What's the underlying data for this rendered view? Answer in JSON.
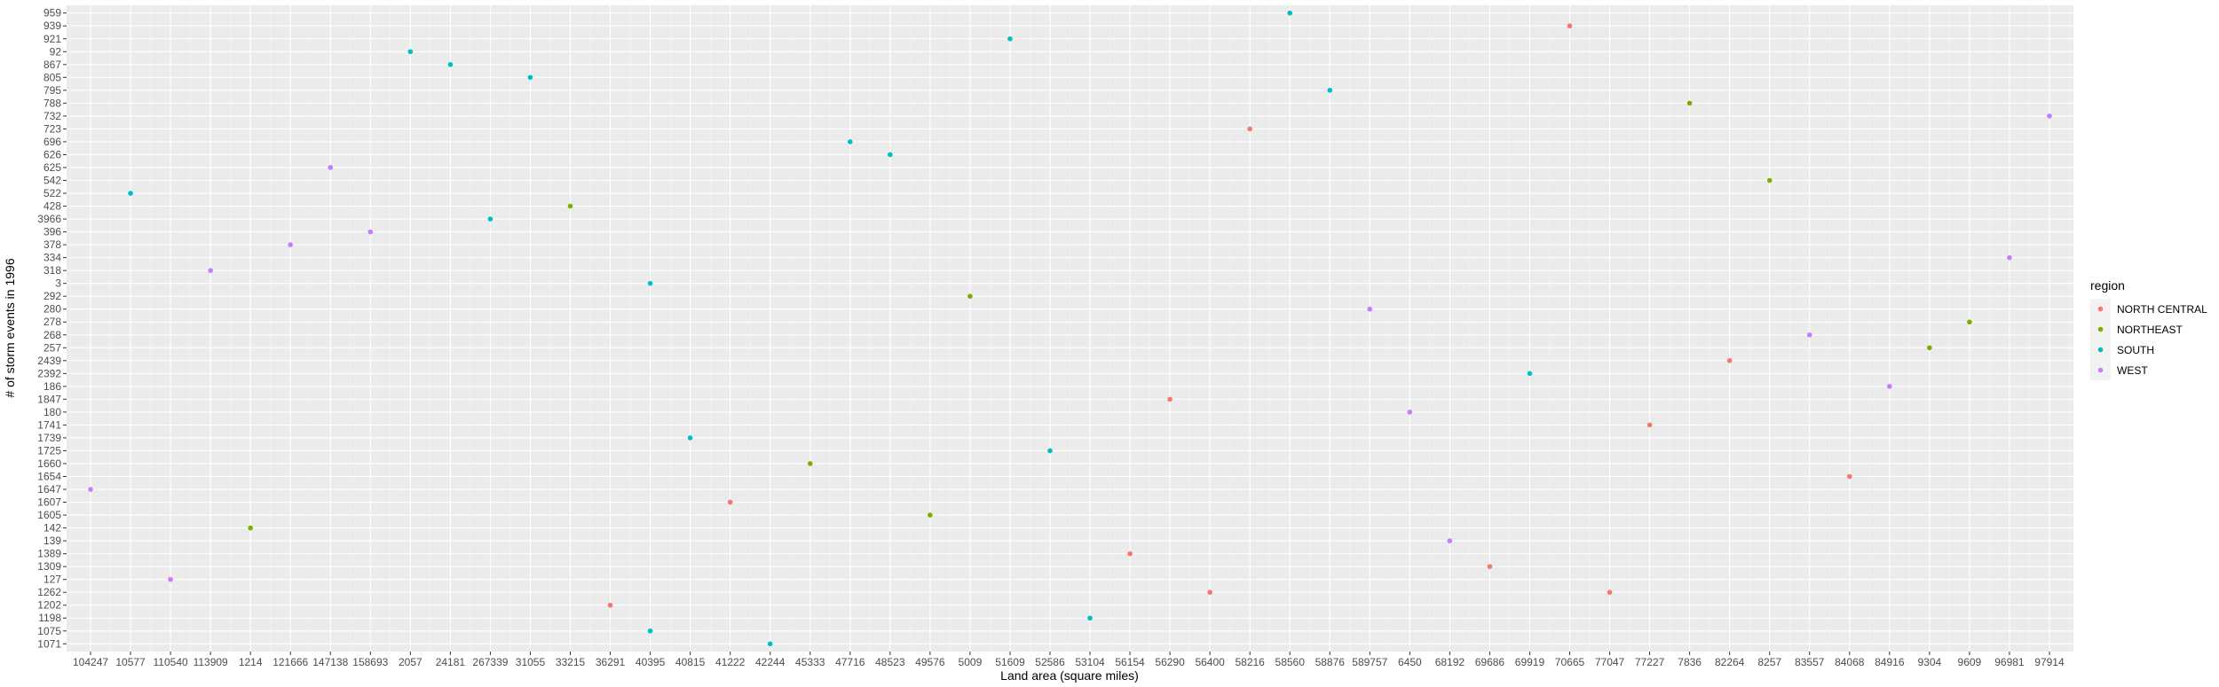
{
  "chart_data": {
    "type": "scatter",
    "xlabel": "Land area (square miles)",
    "ylabel": "# of storm events in 1996",
    "x_categories": [
      "104247",
      "10577",
      "110540",
      "113909",
      "1214",
      "121666",
      "147138",
      "158693",
      "2057",
      "24181",
      "267339",
      "31055",
      "33215",
      "36291",
      "40395",
      "40815",
      "41222",
      "42244",
      "45333",
      "47716",
      "48523",
      "49576",
      "5009",
      "51609",
      "52586",
      "53104",
      "56154",
      "56290",
      "56400",
      "58216",
      "58560",
      "58876",
      "589757",
      "6450",
      "68192",
      "69686",
      "69919",
      "70665",
      "77047",
      "77227",
      "7836",
      "82264",
      "8257",
      "83557",
      "84068",
      "84916",
      "9304",
      "9609",
      "96981",
      "97914"
    ],
    "y_categories": [
      "1071",
      "1075",
      "1198",
      "1202",
      "1262",
      "127",
      "1309",
      "1389",
      "139",
      "142",
      "1605",
      "1607",
      "1647",
      "1654",
      "1660",
      "1725",
      "1739",
      "1741",
      "180",
      "1847",
      "186",
      "2392",
      "2439",
      "257",
      "268",
      "278",
      "280",
      "292",
      "3",
      "318",
      "334",
      "378",
      "396",
      "3966",
      "428",
      "522",
      "542",
      "625",
      "626",
      "696",
      "723",
      "732",
      "788",
      "795",
      "805",
      "867",
      "92",
      "921",
      "939",
      "959"
    ],
    "series": [
      {
        "name": "NORTH CENTRAL",
        "color": "#F8766D",
        "points": [
          {
            "x": "36291",
            "y": "1202"
          },
          {
            "x": "41222",
            "y": "1607"
          },
          {
            "x": "56154",
            "y": "1389"
          },
          {
            "x": "56290",
            "y": "1847"
          },
          {
            "x": "56400",
            "y": "1262"
          },
          {
            "x": "58216",
            "y": "723"
          },
          {
            "x": "69686",
            "y": "1309"
          },
          {
            "x": "70665",
            "y": "939"
          },
          {
            "x": "77047",
            "y": "1262"
          },
          {
            "x": "77227",
            "y": "1741"
          },
          {
            "x": "82264",
            "y": "2439"
          },
          {
            "x": "84068",
            "y": "1654"
          }
        ]
      },
      {
        "name": "NORTHEAST",
        "color": "#7CAE00",
        "points": [
          {
            "x": "1214",
            "y": "142"
          },
          {
            "x": "33215",
            "y": "428"
          },
          {
            "x": "45333",
            "y": "1660"
          },
          {
            "x": "49576",
            "y": "1605"
          },
          {
            "x": "5009",
            "y": "292"
          },
          {
            "x": "7836",
            "y": "788"
          },
          {
            "x": "8257",
            "y": "542"
          },
          {
            "x": "9304",
            "y": "257"
          },
          {
            "x": "9609",
            "y": "278"
          }
        ]
      },
      {
        "name": "SOUTH",
        "color": "#00BFC4",
        "points": [
          {
            "x": "10577",
            "y": "522"
          },
          {
            "x": "2057",
            "y": "92"
          },
          {
            "x": "24181",
            "y": "867"
          },
          {
            "x": "267339",
            "y": "3966"
          },
          {
            "x": "31055",
            "y": "805"
          },
          {
            "x": "40395",
            "y": "3"
          },
          {
            "x": "40395",
            "y": "1075"
          },
          {
            "x": "40815",
            "y": "1739"
          },
          {
            "x": "42244",
            "y": "1071"
          },
          {
            "x": "47716",
            "y": "696"
          },
          {
            "x": "48523",
            "y": "626"
          },
          {
            "x": "51609",
            "y": "921"
          },
          {
            "x": "52586",
            "y": "1725"
          },
          {
            "x": "53104",
            "y": "1198"
          },
          {
            "x": "58560",
            "y": "959"
          },
          {
            "x": "58876",
            "y": "795"
          },
          {
            "x": "69919",
            "y": "2392"
          }
        ]
      },
      {
        "name": "WEST",
        "color": "#C77CFF",
        "points": [
          {
            "x": "104247",
            "y": "1647"
          },
          {
            "x": "110540",
            "y": "127"
          },
          {
            "x": "113909",
            "y": "318"
          },
          {
            "x": "121666",
            "y": "378"
          },
          {
            "x": "147138",
            "y": "625"
          },
          {
            "x": "158693",
            "y": "396"
          },
          {
            "x": "589757",
            "y": "280"
          },
          {
            "x": "6450",
            "y": "180"
          },
          {
            "x": "68192",
            "y": "139"
          },
          {
            "x": "83557",
            "y": "268"
          },
          {
            "x": "84916",
            "y": "186"
          },
          {
            "x": "96981",
            "y": "334"
          },
          {
            "x": "97914",
            "y": "732"
          }
        ]
      }
    ],
    "legend": {
      "title": "region",
      "position": "right"
    },
    "grid": true
  }
}
